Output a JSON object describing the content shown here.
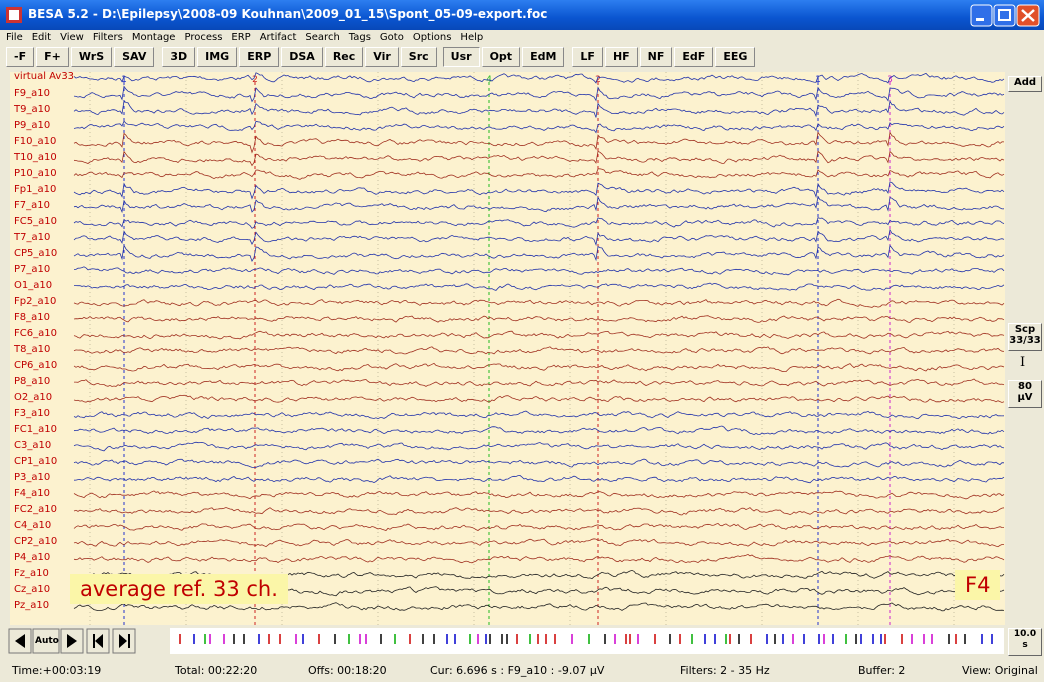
{
  "window": {
    "title": "BESA 5.2 - D:\\Epilepsy\\2008-09 Kouhnan\\2009_01_15\\Spont_05-09-export.foc"
  },
  "menu": [
    "File",
    "Edit",
    "View",
    "Filters",
    "Montage",
    "Process",
    "ERP",
    "Artifact",
    "Search",
    "Tags",
    "Goto",
    "Options",
    "Help"
  ],
  "toolbar": [
    "-F",
    "F+",
    "WrS",
    "SAV",
    "3D",
    "IMG",
    "ERP",
    "DSA",
    "Rec",
    "Vir",
    "Src",
    "Usr",
    "Opt",
    "EdM",
    "LF",
    "HF",
    "NF",
    "EdF",
    "EEG"
  ],
  "channels": [
    "virtual Av33",
    "F9_a10",
    "T9_a10",
    "P9_a10",
    "F10_a10",
    "T10_a10",
    "P10_a10",
    "Fp1_a10",
    "F7_a10",
    "FC5_a10",
    "T7_a10",
    "CP5_a10",
    "P7_a10",
    "O1_a10",
    "Fp2_a10",
    "F8_a10",
    "FC6_a10",
    "T8_a10",
    "CP6_a10",
    "P8_a10",
    "O2_a10",
    "F3_a10",
    "FC1_a10",
    "C3_a10",
    "CP1_a10",
    "P3_a10",
    "F4_a10",
    "FC2_a10",
    "C4_a10",
    "CP2_a10",
    "P4_a10",
    "Fz_a10",
    "Cz_a10",
    "Pz_a10"
  ],
  "markers": [
    "1",
    "2",
    "4",
    "2",
    "1",
    "3"
  ],
  "side_buttons": {
    "add": "Add",
    "scope": [
      "Scp",
      "33/33"
    ],
    "scale_symbol": "I",
    "scale": [
      "80",
      "µV"
    ]
  },
  "navigation": {
    "auto": "Auto",
    "duration": [
      "10.0",
      "s"
    ]
  },
  "status": [
    "Time:+00:03:19",
    "Total: 00:22:20",
    "Offs: 00:18:20",
    "Cur: 6.696 s : F9_a10 : -9.07 µV",
    "Filters: 2 - 35 Hz",
    "Buffer: 2",
    "View: Original"
  ],
  "overlays": {
    "montage_note": "average ref. 33 ch.",
    "key": "F4"
  }
}
